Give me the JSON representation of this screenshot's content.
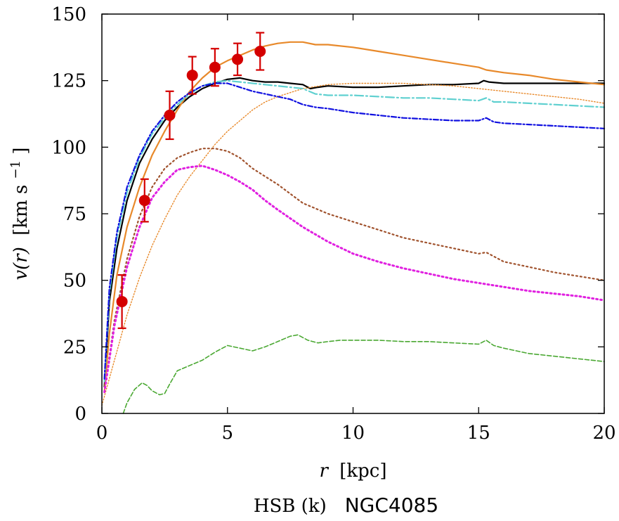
{
  "chart_data": {
    "type": "line",
    "title": "",
    "caption_prefix": "HSB (k)",
    "caption_name": "NGC4085",
    "xlabel_var": "r",
    "xlabel_unit": "[kpc]",
    "ylabel_var": "v(r)",
    "ylabel_unit_main": "[km s",
    "ylabel_unit_sup": "−1",
    "ylabel_unit_end": "]",
    "xlim": [
      0,
      20
    ],
    "ylim": [
      0,
      150
    ],
    "xticks": [
      0,
      5,
      10,
      15,
      20
    ],
    "yticks": [
      0,
      25,
      50,
      75,
      100,
      125,
      150
    ],
    "grid": false,
    "series": [
      {
        "name": "total (solid black)",
        "color": "#000000",
        "style": "solid",
        "x": [
          0.1,
          0.3,
          0.6,
          1,
          1.5,
          2,
          2.5,
          3,
          3.5,
          4,
          4.5,
          5,
          5.5,
          6,
          6.5,
          7,
          7.5,
          8,
          8.3,
          8.6,
          9,
          10,
          11,
          12,
          13,
          14,
          15,
          15.2,
          15.4,
          16,
          17,
          18,
          19,
          20
        ],
        "y": [
          10,
          42,
          62,
          80,
          94,
          103,
          110,
          115,
          119,
          122,
          124,
          125.5,
          126,
          125,
          124.5,
          124.5,
          124,
          123.5,
          122,
          122.5,
          123,
          122.5,
          122.5,
          123,
          123.5,
          123.5,
          124,
          125,
          124.5,
          124,
          124,
          124,
          124,
          124
        ]
      },
      {
        "name": "orange solid",
        "color": "#e8892a",
        "style": "solid",
        "x": [
          0.1,
          0.3,
          0.6,
          1,
          1.5,
          2,
          2.5,
          3,
          3.5,
          4,
          4.5,
          5,
          5.5,
          6,
          6.5,
          7,
          7.5,
          8,
          8.5,
          9,
          10,
          11,
          12,
          13,
          14,
          15,
          15.3,
          16,
          17,
          18,
          19,
          20
        ],
        "y": [
          8,
          30,
          52,
          70,
          85,
          97,
          106,
          114,
          121,
          126,
          130,
          132.5,
          134.5,
          136.5,
          138,
          139,
          139.5,
          139.5,
          138.5,
          138.5,
          137.5,
          136,
          134.5,
          133,
          131.5,
          130,
          129,
          128,
          127,
          125.5,
          124.5,
          123.5
        ]
      },
      {
        "name": "orange dotted",
        "color": "#e8892a",
        "style": "dotted-fine",
        "x": [
          0,
          0.5,
          1,
          1.5,
          2,
          2.5,
          3,
          3.5,
          4,
          4.5,
          5,
          5.5,
          6,
          6.5,
          7,
          8,
          9,
          10,
          11,
          12,
          13,
          14,
          15,
          16,
          17,
          18,
          19,
          20
        ],
        "y": [
          3,
          20,
          37,
          51,
          63,
          73,
          82,
          89,
          95,
          101,
          106,
          110,
          114,
          117,
          119,
          122,
          123.5,
          124,
          124,
          124,
          123.5,
          123,
          122,
          121,
          120,
          119,
          118,
          116.5
        ]
      },
      {
        "name": "cyan dash-dot",
        "color": "#5fd0d0",
        "style": "dashdot",
        "x": [
          0.1,
          0.3,
          0.6,
          1,
          1.5,
          2,
          2.5,
          3,
          3.5,
          4,
          4.5,
          5,
          5.5,
          6,
          7,
          8,
          8.5,
          9,
          10,
          11,
          12,
          13,
          14,
          15,
          15.3,
          15.6,
          16,
          17,
          18,
          19,
          20
        ],
        "y": [
          12,
          45,
          66,
          83,
          96,
          105,
          111,
          116,
          120,
          123,
          124.5,
          125,
          124.5,
          124,
          123,
          122,
          120,
          119.5,
          119.5,
          119,
          118.5,
          118.5,
          118,
          117.5,
          118.5,
          117,
          117,
          116.5,
          116,
          115.5,
          115
        ]
      },
      {
        "name": "blue dash-dot",
        "color": "#1010e0",
        "style": "dashdot-dense",
        "x": [
          0.1,
          0.3,
          0.6,
          1,
          1.5,
          2,
          2.5,
          3,
          3.5,
          4,
          4.5,
          5,
          5.5,
          6,
          6.5,
          7,
          7.5,
          8,
          8.5,
          9,
          10,
          11,
          12,
          13,
          14,
          15,
          15.3,
          15.6,
          16,
          17,
          18,
          19,
          20
        ],
        "y": [
          13,
          47,
          68,
          85,
          97,
          106,
          112,
          117,
          120.5,
          123,
          124,
          124,
          122.5,
          121,
          120,
          119,
          118,
          116,
          115,
          114.5,
          113,
          112,
          111,
          110.5,
          110,
          110,
          111,
          109.5,
          109,
          108.5,
          108,
          107.5,
          107
        ]
      },
      {
        "name": "brown dotted",
        "color": "#a0522d",
        "style": "dotted",
        "x": [
          0.1,
          0.5,
          1,
          1.5,
          2,
          2.5,
          3,
          3.5,
          4,
          4.5,
          5,
          5.5,
          6,
          6.5,
          7,
          8,
          9,
          10,
          11,
          12,
          13,
          14,
          15,
          15.3,
          15.6,
          16,
          17,
          18,
          19,
          20
        ],
        "y": [
          8,
          35,
          58,
          74,
          85,
          92,
          96,
          98,
          99.5,
          99.5,
          98.5,
          96,
          92,
          89,
          86,
          79,
          75,
          72,
          69,
          66,
          64,
          62,
          60,
          60.5,
          59,
          57,
          55,
          53,
          51.5,
          50
        ]
      },
      {
        "name": "magenta dotted",
        "color": "#e020e0",
        "style": "dotted-bold",
        "x": [
          0.1,
          0.5,
          1,
          1.5,
          2,
          2.5,
          3,
          3.5,
          4,
          4.5,
          5,
          5.5,
          6,
          6.5,
          7,
          8,
          9,
          10,
          11,
          12,
          13,
          14,
          15,
          16,
          17,
          18,
          19,
          20
        ],
        "y": [
          8,
          33,
          55,
          70,
          81,
          87,
          91.5,
          92.5,
          93,
          91.5,
          89.5,
          87,
          84,
          80,
          76.5,
          70,
          64.5,
          60,
          57,
          54.5,
          52.5,
          50.5,
          49,
          47.5,
          46,
          45,
          44,
          42.5
        ]
      },
      {
        "name": "green dashed",
        "color": "#4aa832",
        "style": "dashed",
        "x": [
          0.85,
          1,
          1.3,
          1.6,
          1.8,
          2,
          2.3,
          2.5,
          2.7,
          3,
          3.5,
          4,
          4.5,
          5,
          5.5,
          6,
          6.5,
          7,
          7.5,
          7.8,
          8.2,
          8.6,
          9,
          9.5,
          10,
          11,
          12,
          13,
          14,
          15,
          15.3,
          15.6,
          16,
          17,
          18,
          19,
          20
        ],
        "y": [
          0,
          4,
          9,
          11.5,
          10.5,
          8.5,
          7,
          7.5,
          11,
          16,
          18,
          20,
          23,
          25.5,
          24.5,
          23.5,
          25,
          27,
          29,
          29.5,
          27.5,
          26.5,
          27,
          27.5,
          27.5,
          27.5,
          27,
          27,
          26.5,
          26,
          27.5,
          25.5,
          24.5,
          22.5,
          21.5,
          20.5,
          19.5
        ]
      }
    ],
    "observations": {
      "name": "data points with error bars",
      "color": "#d40000",
      "points": [
        {
          "r": 0.8,
          "v": 42,
          "err": 10
        },
        {
          "r": 1.7,
          "v": 80,
          "err": 8
        },
        {
          "r": 2.7,
          "v": 112,
          "err": 9
        },
        {
          "r": 3.6,
          "v": 127,
          "err": 7
        },
        {
          "r": 4.5,
          "v": 130,
          "err": 7
        },
        {
          "r": 5.4,
          "v": 133,
          "err": 6
        },
        {
          "r": 6.3,
          "v": 136,
          "err": 7
        }
      ]
    }
  }
}
